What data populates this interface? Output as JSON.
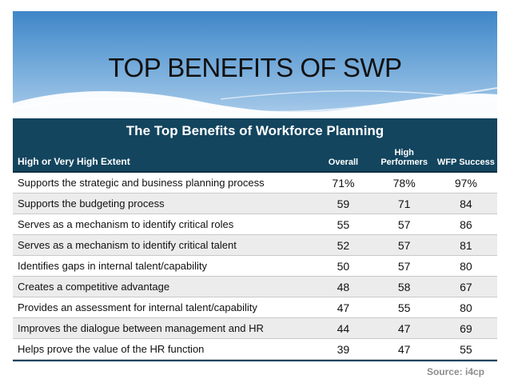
{
  "slide": {
    "title": "TOP BENEFITS OF SWP"
  },
  "table": {
    "title": "The Top Benefits of Workforce Planning",
    "header": {
      "label": "High or Very High Extent",
      "col1": "Overall",
      "col2": "High Performers",
      "col3": "WFP Success"
    },
    "rows": [
      {
        "label": "Supports the strategic and business planning process",
        "overall": "71%",
        "high": "78%",
        "wfp": "97%"
      },
      {
        "label": "Supports the budgeting process",
        "overall": "59",
        "high": "71",
        "wfp": "84"
      },
      {
        "label": "Serves as a mechanism to identify critical roles",
        "overall": "55",
        "high": "57",
        "wfp": "86"
      },
      {
        "label": "Serves as a mechanism to identify critical talent",
        "overall": "52",
        "high": "57",
        "wfp": "81"
      },
      {
        "label": "Identifies gaps in internal talent/capability",
        "overall": "50",
        "high": "57",
        "wfp": "80"
      },
      {
        "label": "Creates a competitive advantage",
        "overall": "48",
        "high": "58",
        "wfp": "67"
      },
      {
        "label": "Provides an assessment for internal talent/capability",
        "overall": "47",
        "high": "55",
        "wfp": "80"
      },
      {
        "label": "Improves the dialogue between management and HR",
        "overall": "44",
        "high": "47",
        "wfp": "69"
      },
      {
        "label": "Helps prove the value of the HR function",
        "overall": "39",
        "high": "47",
        "wfp": "55"
      }
    ],
    "source": "Source: i4cp"
  },
  "colors": {
    "header_bg": "#13455f",
    "banner_top": "#3f86c8",
    "banner_bottom": "#a9cbea"
  }
}
